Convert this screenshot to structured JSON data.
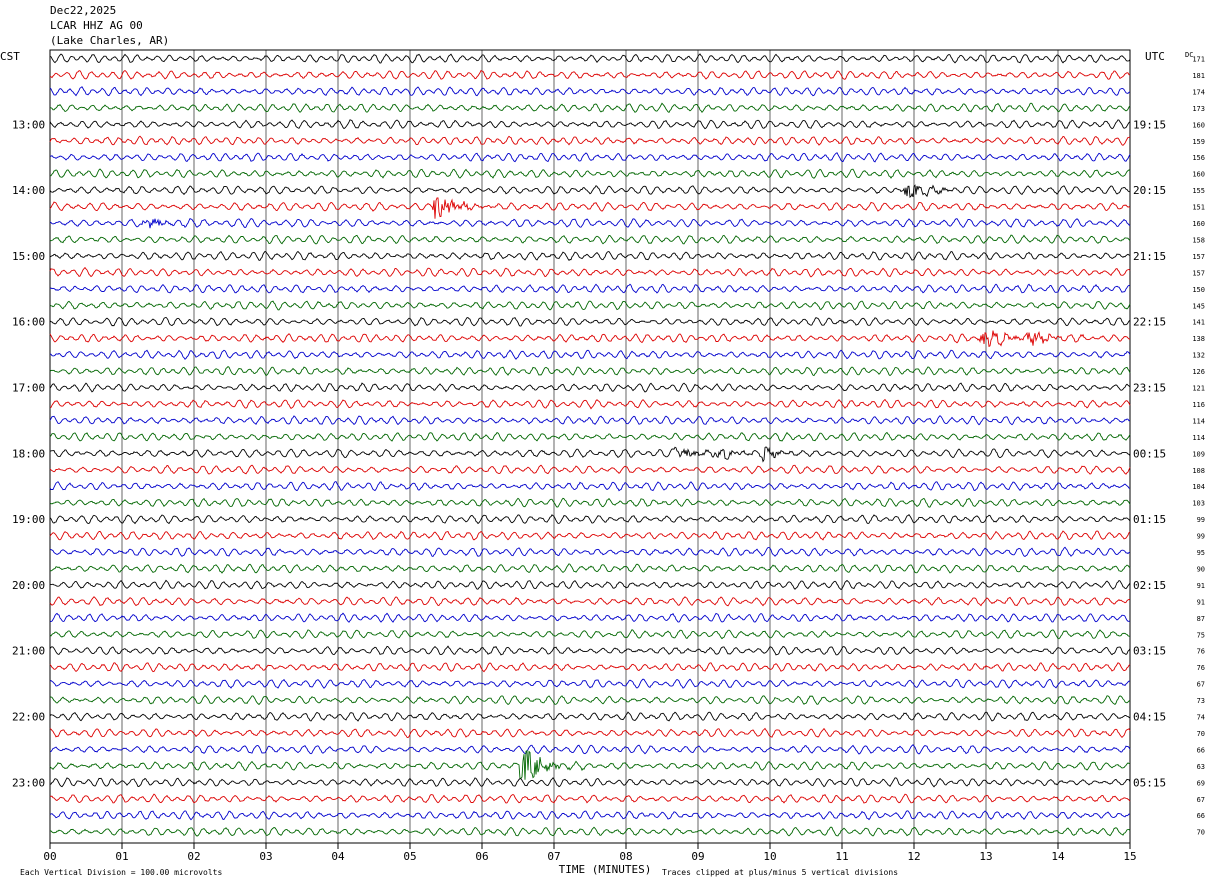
{
  "header": {
    "date": "Dec22,2025",
    "station": "LCAR HHZ AG 00",
    "location": "(Lake Charles, AR)"
  },
  "colors": {
    "black": "#000000",
    "red": "#dd0000",
    "blue": "#0000cc",
    "green": "#006600",
    "grid": "#000000"
  },
  "chart_data": {
    "type": "line",
    "title": "",
    "xlabel": "TIME (MINUTES)",
    "left_axis_label": "CST",
    "right_axis_label": "UTC",
    "dc_label": "DC",
    "x_ticks": [
      "00",
      "01",
      "02",
      "03",
      "04",
      "05",
      "06",
      "07",
      "08",
      "09",
      "10",
      "11",
      "12",
      "13",
      "14",
      "15"
    ],
    "xlim": [
      0,
      15
    ],
    "cst_hour_labels": [
      "13:00",
      "14:00",
      "15:00",
      "16:00",
      "17:00",
      "18:00",
      "19:00",
      "20:00",
      "21:00",
      "22:00",
      "23:00"
    ],
    "utc_hour_labels": [
      "19:15",
      "20:15",
      "21:15",
      "22:15",
      "23:15",
      "00:15",
      "01:15",
      "02:15",
      "03:15",
      "04:15",
      "05:15"
    ],
    "trace_color_cycle": [
      "black",
      "red",
      "blue",
      "green"
    ],
    "dc_offsets": [
      171,
      181,
      174,
      173,
      160,
      159,
      156,
      160,
      155,
      151,
      160,
      158,
      157,
      157,
      150,
      145,
      141,
      138,
      132,
      126,
      121,
      116,
      114,
      114,
      109,
      108,
      104,
      103,
      99,
      99,
      95,
      90,
      91,
      91,
      87,
      75,
      76,
      76,
      67,
      73,
      74,
      70,
      66,
      63,
      69,
      67,
      66,
      70
    ],
    "events": [
      {
        "trace": 8,
        "minute": 11.9,
        "amp": 1.6
      },
      {
        "trace": 9,
        "minute": 5.35,
        "amp": 2.4
      },
      {
        "trace": 10,
        "minute": 1.3,
        "amp": 1.2
      },
      {
        "trace": 17,
        "minute": 12.95,
        "amp": 1.6
      },
      {
        "trace": 17,
        "minute": 13.6,
        "amp": 1.4
      },
      {
        "trace": 24,
        "minute": 8.7,
        "amp": 1.2
      },
      {
        "trace": 24,
        "minute": 9.25,
        "amp": 1.3
      },
      {
        "trace": 24,
        "minute": 9.9,
        "amp": 1.1
      },
      {
        "trace": 43,
        "minute": 6.55,
        "amp": 3.0
      }
    ],
    "footer_left": "Each Vertical Division =  100.00 microvolts",
    "footer_right": "Traces clipped at plus/minus 5 vertical divisions"
  }
}
